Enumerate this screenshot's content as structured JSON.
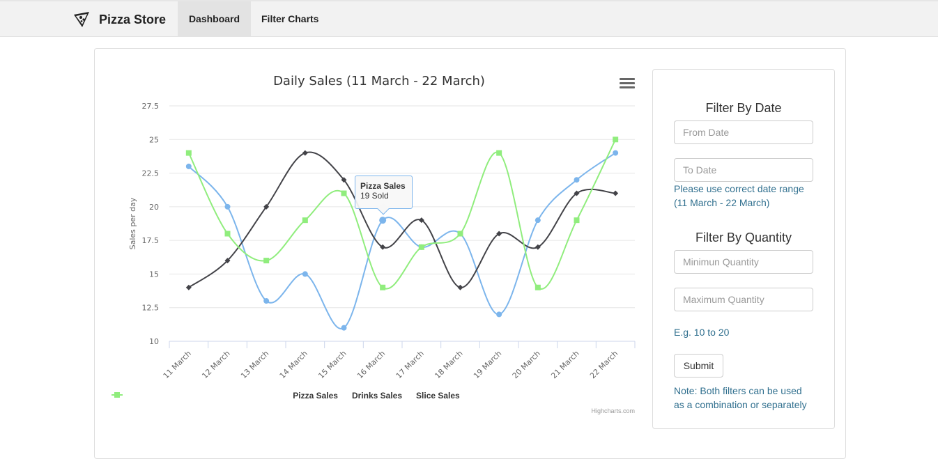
{
  "app": {
    "name": "Pizza Store",
    "logo_icon": "pizza-slice-icon"
  },
  "nav": {
    "items": [
      {
        "label": "Dashboard",
        "active": true
      },
      {
        "label": "Filter Charts",
        "active": false
      }
    ]
  },
  "chart_data": {
    "type": "line",
    "title": "Daily Sales (11 March - 22 March)",
    "xlabel": "",
    "ylabel": "Sales per day",
    "categories": [
      "11 March",
      "12 March",
      "13 March",
      "14 March",
      "15 March",
      "16 March",
      "17 March",
      "18 March",
      "19 March",
      "20 March",
      "21 March",
      "22 March"
    ],
    "yticks": [
      "10",
      "12.5",
      "15",
      "17.5",
      "20",
      "22.5",
      "25",
      "27.5"
    ],
    "ylim": [
      10,
      27.5
    ],
    "grid": true,
    "legend_position": "bottom",
    "series": [
      {
        "name": "Pizza Sales",
        "color": "#7cb5ec",
        "marker": "circle",
        "values": [
          23,
          20,
          13,
          15,
          11,
          19,
          17,
          18,
          12,
          19,
          22,
          24
        ]
      },
      {
        "name": "Drinks Sales",
        "color": "#434348",
        "marker": "diamond",
        "values": [
          14,
          16,
          20,
          24,
          22,
          17,
          19,
          14,
          18,
          17,
          21,
          21
        ]
      },
      {
        "name": "Slice Sales",
        "color": "#90ed7d",
        "marker": "square",
        "values": [
          24,
          18,
          16,
          19,
          21,
          14,
          17,
          18,
          24,
          14,
          19,
          25
        ]
      }
    ],
    "tooltip": {
      "title": "Pizza Sales",
      "value": "19 Sold"
    },
    "credits": "Highcharts.com"
  },
  "filters": {
    "date_title": "Filter By Date",
    "from_placeholder": "From Date",
    "to_placeholder": "To Date",
    "date_help_1": "Please use correct date range",
    "date_help_2": "(11 March - 22 March)",
    "quantity_title": "Filter By Quantity",
    "min_placeholder": "Minimun Quantity",
    "max_placeholder": "Maximum Quantity",
    "quantity_help": "E.g. 10 to 20",
    "submit_label": "Submit",
    "note_1": "Note: Both filters can be used",
    "note_2": "as a combination or separately"
  }
}
